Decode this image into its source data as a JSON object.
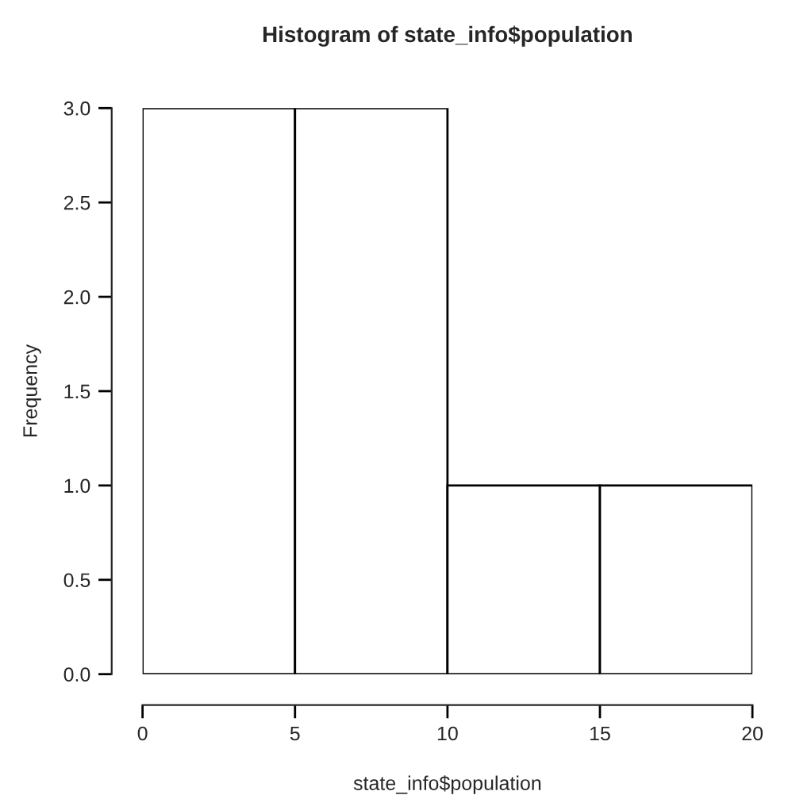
{
  "chart_data": {
    "type": "histogram",
    "title": "Histogram of state_info$population",
    "xlabel": "state_info$population",
    "ylabel": "Frequency",
    "bins": [
      0,
      5,
      10,
      15,
      20
    ],
    "values": [
      3,
      3,
      1,
      1
    ],
    "color": "#ffffff",
    "xlim": [
      0,
      20
    ],
    "xticks": [
      0,
      5,
      10,
      15,
      20
    ],
    "ylim": [
      0,
      3
    ],
    "yticks": [
      {
        "value": 0,
        "label": "0.0"
      },
      0.5,
      {
        "value": 1,
        "label": "1.0"
      },
      1.5,
      {
        "value": 2,
        "label": "2.0"
      },
      2.5,
      {
        "value": 3,
        "label": "3.0"
      }
    ],
    "grid": false
  }
}
